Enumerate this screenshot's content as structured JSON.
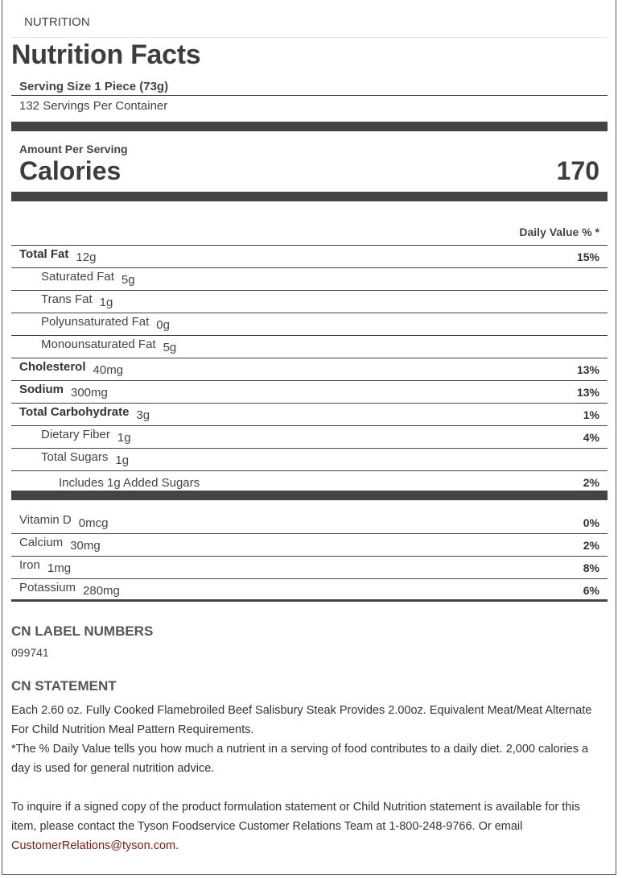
{
  "section_label": "NUTRITION",
  "title": "Nutrition Facts",
  "serving_size": "Serving Size 1 Piece (73g)",
  "servings_per_container": "132 Servings Per Container",
  "amount_per_serving": "Amount Per Serving",
  "calories_label": "Calories",
  "calories_value": "170",
  "daily_value_header": "Daily Value % *",
  "nutrients": [
    {
      "label": "Total Fat",
      "amount": "12g",
      "dv": "15%"
    },
    {
      "label": "Saturated Fat",
      "amount": "5g",
      "dv": ""
    },
    {
      "label": "Trans Fat",
      "amount": "1g",
      "dv": ""
    },
    {
      "label": "Polyunsaturated Fat",
      "amount": "0g",
      "dv": ""
    },
    {
      "label": "Monounsaturated Fat",
      "amount": "5g",
      "dv": ""
    },
    {
      "label": "Cholesterol",
      "amount": "40mg",
      "dv": "13%"
    },
    {
      "label": "Sodium",
      "amount": "300mg",
      "dv": "13%"
    },
    {
      "label": "Total Carbohydrate",
      "amount": "3g",
      "dv": "1%"
    },
    {
      "label": "Dietary Fiber",
      "amount": "1g",
      "dv": "4%"
    },
    {
      "label": "Total Sugars",
      "amount": "1g",
      "dv": ""
    },
    {
      "label": "Includes 1g Added Sugars",
      "amount": "",
      "dv": "2%"
    }
  ],
  "vitamins": [
    {
      "label": "Vitamin D",
      "amount": "0mcg",
      "dv": "0%"
    },
    {
      "label": "Calcium",
      "amount": "30mg",
      "dv": "2%"
    },
    {
      "label": "Iron",
      "amount": "1mg",
      "dv": "8%"
    },
    {
      "label": "Potassium",
      "amount": "280mg",
      "dv": "6%"
    }
  ],
  "cn_label_heading": "CN LABEL NUMBERS",
  "cn_label_number": "099741",
  "cn_statement_heading": "CN STATEMENT",
  "cn_statement": "Each 2.60 oz. Fully Cooked Flamebroiled Beef Salisbury Steak Provides 2.00oz. Equivalent Meat/Meat Alternate For Child Nutrition Meal Pattern Requirements.",
  "dv_footnote": "*The % Daily Value tells you how much a nutrient in a serving of food contributes to a daily diet. 2,000 calories a day is used for general nutrition advice.",
  "inquiry_text": "To inquire if a signed copy of the product formulation statement or Child Nutrition statement is available for this item, please contact the Tyson Foodservice Customer Relations Team at 1-800-248-9766. Or email ",
  "email": "CustomerRelations@tyson.com",
  "inquiry_end": ".",
  "colors": {
    "text": "#444444",
    "bar": "#444444",
    "link": "#7a1b1b"
  }
}
